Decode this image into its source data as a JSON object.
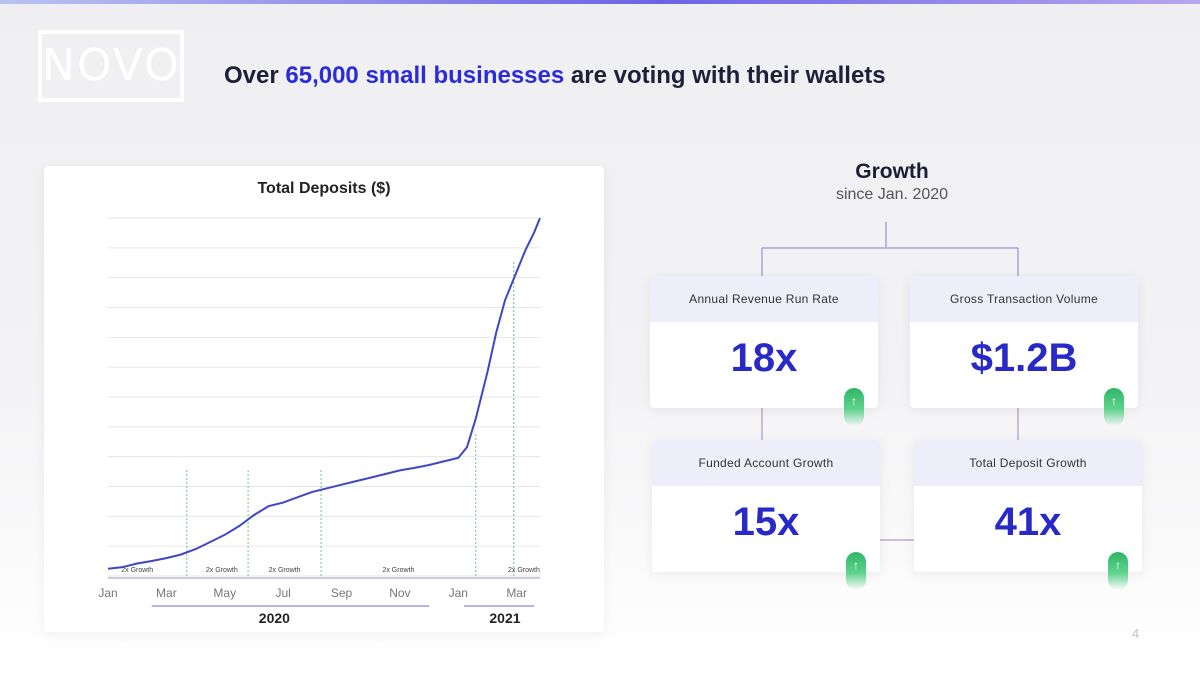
{
  "brand": {
    "logo": "NOVO"
  },
  "headline": {
    "prefix": "Over ",
    "highlight": "65,000 small businesses",
    "suffix": " are voting with their wallets"
  },
  "chart_data": {
    "type": "line",
    "title": "Total Deposits ($)",
    "xlabel": "",
    "ylabel": "",
    "x_ticks": [
      "Jan",
      "Mar",
      "May",
      "Jul",
      "Sep",
      "Nov",
      "Jan",
      "Mar"
    ],
    "x_groups": [
      "2020",
      "2021"
    ],
    "gridlines": true,
    "series": [
      {
        "x": [
          0,
          0.5,
          1,
          1.5,
          2,
          2.5,
          3,
          3.5,
          4,
          4.5,
          5,
          5.5,
          6,
          6.5,
          7,
          7.5,
          8,
          8.5,
          9,
          9.5,
          10,
          10.5,
          11,
          11.5,
          12,
          12.3,
          12.6,
          13,
          13.3,
          13.6,
          14,
          14.3,
          14.6,
          14.8
        ],
        "y": [
          2,
          2.5,
          3.5,
          4.2,
          5,
          6,
          7.5,
          9.5,
          11.5,
          14,
          17,
          19.5,
          20.5,
          22,
          23.5,
          24.5,
          25.5,
          26.5,
          27.5,
          28.5,
          29.5,
          30.2,
          31,
          32,
          33,
          36,
          44,
          57,
          68,
          77,
          85,
          91,
          96,
          100
        ]
      }
    ],
    "annotations": [
      "2x Growth",
      "2x Growth",
      "2x Growth",
      "2x Growth",
      "2x Growth"
    ],
    "colors": {
      "line": "#3d47c7",
      "grid": "#e6e6ea",
      "dashed": "#6fc18a"
    }
  },
  "growth": {
    "title": "Growth",
    "subtitle": "since Jan. 2020",
    "metrics": [
      {
        "label": "Annual Revenue Run Rate",
        "value": "18x",
        "icon": "up-arrow-icon"
      },
      {
        "label": "Gross Transaction Volume",
        "value": "$1.2B",
        "icon": "up-arrow-icon"
      },
      {
        "label": "Funded Account Growth",
        "value": "15x",
        "icon": "up-arrow-icon"
      },
      {
        "label": "Total Deposit Growth",
        "value": "41x",
        "icon": "up-arrow-icon"
      }
    ]
  },
  "page": {
    "number": "4"
  }
}
